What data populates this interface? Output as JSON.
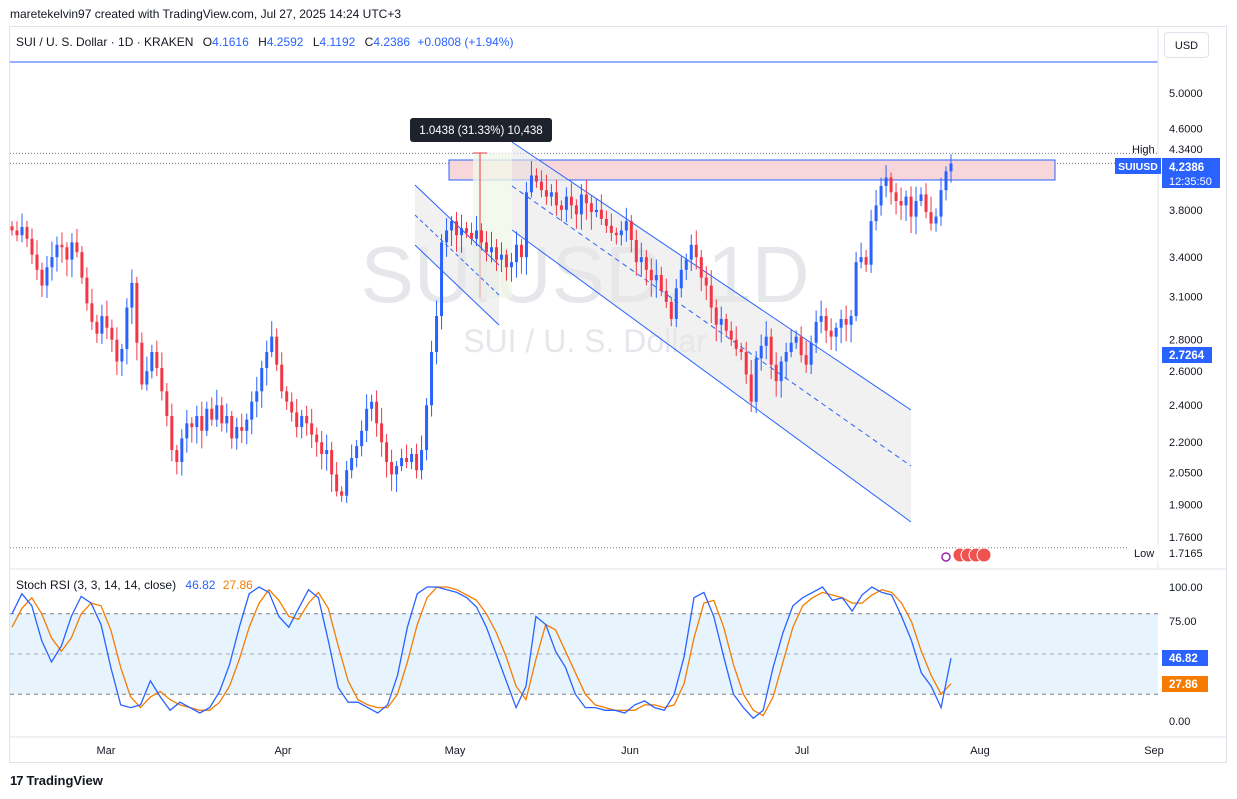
{
  "header": {
    "attribution": "maretekelvin97 created with TradingView.com, Jul 27, 2025 14:24 UTC+3"
  },
  "legend": {
    "symbol": "SUI / U. S. Dollar · 1D · KRAKEN",
    "open_label": "O",
    "open": "4.1616",
    "high_label": "H",
    "high": "4.2592",
    "low_label": "L",
    "low": "4.1192",
    "close_label": "C",
    "close": "4.2386",
    "change": "+0.0808 (+1.94%)"
  },
  "currency_button": "USD",
  "watermark": {
    "ticker": "SUIUSD, 1D",
    "name": "SUI / U. S. Dollar"
  },
  "price_axis": {
    "ticks": [
      "5.0000",
      "4.6000",
      "3.8000",
      "3.4000",
      "3.1000",
      "2.8000",
      "2.6000",
      "2.4000",
      "2.2000",
      "2.0500",
      "1.9000",
      "1.7600"
    ],
    "high_label": "High",
    "high_value": "4.3400",
    "low_label": "Low",
    "low_value": "1.7165",
    "current_symbol": "SUIUSD",
    "current_price": "4.2386",
    "countdown": "12:35:50",
    "ref_level": "2.7264"
  },
  "measure_label": "1.0438 (31.33%) 10,438",
  "time_axis": {
    "labels": [
      "Mar",
      "Apr",
      "May",
      "Jun",
      "Jul",
      "Aug",
      "Sep"
    ]
  },
  "stoch_rsi": {
    "title": "Stoch RSI (3, 3, 14, 14, close)",
    "k_value": "46.82",
    "d_value": "27.86",
    "ticks": [
      "100.00",
      "75.00",
      "0.00"
    ],
    "k_color": "#2962ff",
    "d_color": "#f57c00"
  },
  "branding": {
    "logo_text": "TradingView"
  },
  "colors": {
    "up": "#2962ff",
    "down": "#f23645",
    "band": "#e3f2fd",
    "resistance": "#f8d7da"
  },
  "chart_data": {
    "type": "candlestick",
    "symbol": "SUIUSD",
    "timeframe": "1D",
    "x_axis_labels": [
      "Mar",
      "Apr",
      "May",
      "Jun",
      "Jul",
      "Aug",
      "Sep"
    ],
    "price_axis_scale": "log",
    "ylim": [
      1.66,
      5.38
    ],
    "last_ohlc": {
      "open": 4.1616,
      "high": 4.2592,
      "low": 4.1192,
      "close": 4.2386
    },
    "period_high": 4.34,
    "period_low": 1.7165,
    "resistance_zone": [
      4.12,
      4.36
    ],
    "candles_close": [
      3.62,
      3.58,
      3.65,
      3.55,
      3.42,
      3.3,
      3.18,
      3.32,
      3.4,
      3.5,
      3.48,
      3.38,
      3.52,
      3.44,
      3.24,
      3.05,
      2.92,
      2.84,
      2.96,
      2.88,
      2.8,
      2.66,
      2.74,
      3.02,
      3.2,
      2.78,
      2.52,
      2.6,
      2.72,
      2.62,
      2.48,
      2.34,
      2.16,
      2.1,
      2.22,
      2.3,
      2.28,
      2.34,
      2.26,
      2.38,
      2.32,
      2.4,
      2.3,
      2.34,
      2.22,
      2.28,
      2.26,
      2.32,
      2.42,
      2.48,
      2.62,
      2.72,
      2.82,
      2.64,
      2.48,
      2.42,
      2.36,
      2.28,
      2.34,
      2.3,
      2.24,
      2.2,
      2.14,
      2.16,
      2.04,
      1.96,
      1.94,
      2.06,
      2.12,
      2.18,
      2.26,
      2.38,
      2.42,
      2.3,
      2.2,
      2.1,
      2.04,
      2.08,
      2.12,
      2.1,
      2.14,
      2.06,
      2.16,
      2.4,
      2.72,
      2.96,
      3.52,
      3.62,
      3.7,
      3.58,
      3.64,
      3.6,
      3.55,
      3.62,
      3.52,
      3.44,
      3.48,
      3.38,
      3.42,
      3.32,
      3.36,
      3.5,
      3.4,
      3.96,
      4.12,
      4.06,
      3.98,
      3.92,
      3.96,
      3.84,
      3.8,
      3.92,
      3.84,
      3.76,
      3.94,
      3.86,
      3.78,
      3.8,
      3.72,
      3.66,
      3.6,
      3.58,
      3.62,
      3.7,
      3.54,
      3.36,
      3.4,
      3.3,
      3.22,
      3.26,
      3.14,
      3.06,
      2.94,
      3.16,
      3.3,
      3.38,
      3.5,
      3.4,
      3.24,
      3.18,
      3.02,
      2.9,
      2.94,
      2.86,
      2.8,
      2.74,
      2.72,
      2.58,
      2.42,
      2.68,
      2.76,
      2.82,
      2.64,
      2.54,
      2.66,
      2.72,
      2.78,
      2.82,
      2.7,
      2.64,
      2.78,
      2.92,
      2.96,
      2.86,
      2.82,
      2.88,
      2.94,
      2.9,
      2.96,
      3.36,
      3.4,
      3.34,
      3.7,
      3.84,
      4.02,
      4.1,
      3.96,
      3.88,
      3.84,
      3.92,
      3.74,
      3.88,
      3.94,
      3.78,
      3.68,
      3.74,
      3.98,
      4.16,
      4.2386
    ],
    "stoch_rsi": {
      "k_last": 46.82,
      "d_last": 27.86,
      "k": [
        80,
        95,
        86,
        60,
        44,
        56,
        78,
        93,
        88,
        72,
        40,
        12,
        10,
        12,
        30,
        18,
        8,
        14,
        10,
        6,
        10,
        22,
        42,
        70,
        95,
        100,
        96,
        78,
        70,
        84,
        98,
        92,
        60,
        25,
        14,
        14,
        10,
        6,
        12,
        34,
        70,
        95,
        100,
        100,
        98,
        96,
        92,
        85,
        70,
        50,
        30,
        10,
        26,
        78,
        72,
        52,
        40,
        20,
        10,
        10,
        8,
        8,
        6,
        12,
        15,
        10,
        8,
        20,
        48,
        92,
        96,
        78,
        48,
        20,
        10,
        2,
        8,
        40,
        66,
        86,
        92,
        96,
        100,
        90,
        92,
        82,
        94,
        100,
        96,
        94,
        78,
        60,
        36,
        26,
        10,
        46.82
      ],
      "d": [
        70,
        84,
        92,
        80,
        62,
        52,
        62,
        80,
        88,
        86,
        68,
        40,
        18,
        10,
        18,
        22,
        16,
        12,
        10,
        8,
        8,
        14,
        26,
        46,
        70,
        88,
        98,
        90,
        78,
        76,
        88,
        96,
        84,
        56,
        30,
        16,
        12,
        10,
        10,
        20,
        44,
        72,
        92,
        100,
        100,
        98,
        94,
        90,
        80,
        66,
        48,
        26,
        16,
        46,
        72,
        68,
        52,
        36,
        20,
        12,
        10,
        8,
        8,
        8,
        12,
        12,
        10,
        12,
        28,
        62,
        88,
        90,
        70,
        42,
        20,
        8,
        4,
        18,
        44,
        70,
        86,
        92,
        96,
        94,
        92,
        88,
        88,
        94,
        98,
        96,
        88,
        74,
        52,
        34,
        20,
        27.86
      ],
      "levels": [
        80,
        50,
        20
      ],
      "ylim": [
        0,
        100
      ]
    }
  }
}
